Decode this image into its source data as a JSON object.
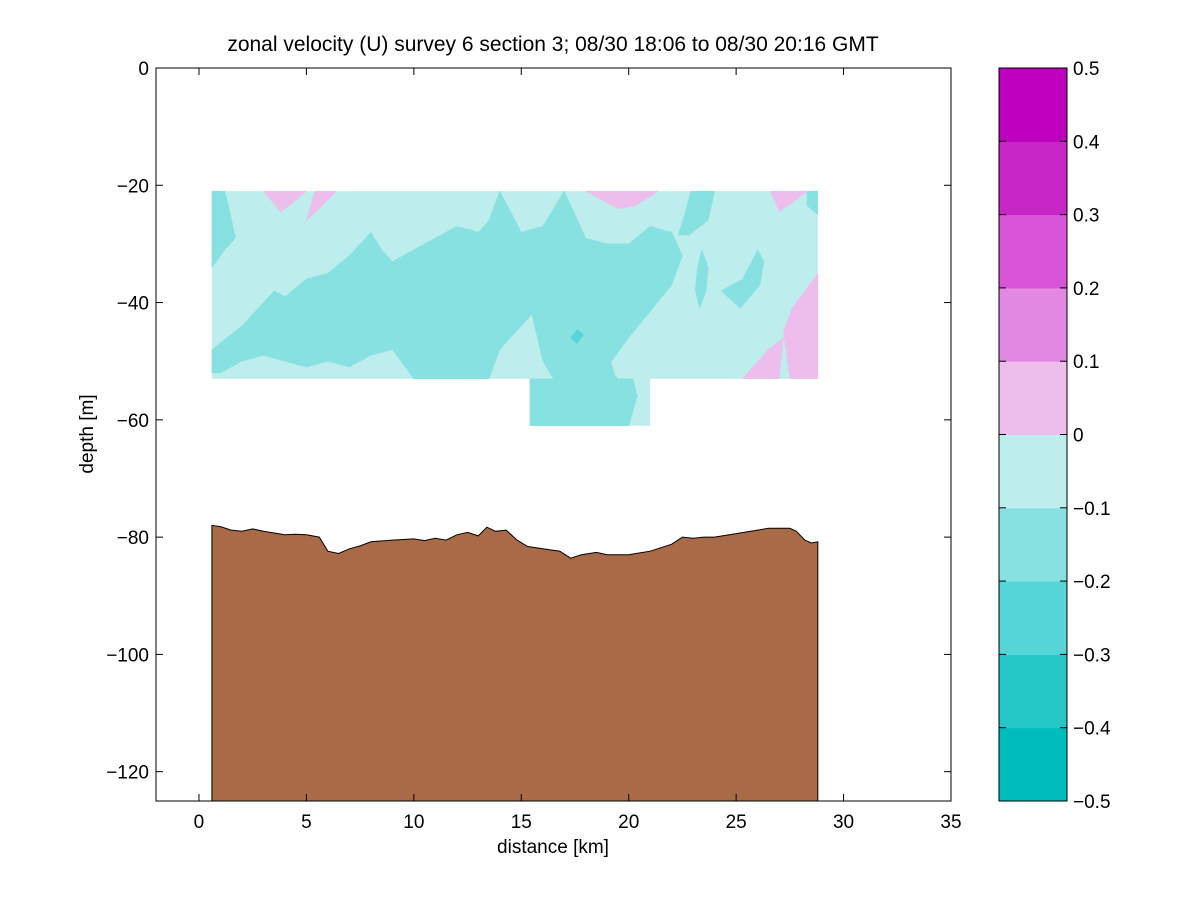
{
  "chart_data": {
    "type": "contour",
    "title": "zonal velocity (U) survey 6 section 3; 08/30 18:06 to 08/30 20:16 GMT",
    "xlabel": "distance [km]",
    "ylabel": "depth [m]",
    "xlim": [
      -2,
      35
    ],
    "ylim": [
      -125,
      0
    ],
    "x_ticks": [
      0,
      5,
      10,
      15,
      20,
      25,
      30,
      35
    ],
    "y_ticks": [
      0,
      -20,
      -40,
      -60,
      -80,
      -100,
      -120
    ],
    "grid": false,
    "colorbar": {
      "levels": [
        -0.5,
        -0.4,
        -0.3,
        -0.2,
        -0.1,
        0,
        0.1,
        0.2,
        0.3,
        0.4,
        0.5
      ],
      "tick_labels": [
        "−0.5",
        "−0.4",
        "−0.3",
        "−0.2",
        "−0.1",
        "0",
        "0.1",
        "0.2",
        "0.3",
        "0.4",
        "0.5"
      ],
      "colors": [
        "#00bdbd",
        "#26c7c7",
        "#55d5d5",
        "#88e1e1",
        "#bdeded",
        "#edbdec",
        "#e388e2",
        "#d955d7",
        "#c726c5",
        "#bd00bd"
      ],
      "placement": "right"
    },
    "velocity_field": {
      "background_level_range": [
        -0.1,
        0
      ],
      "data_extent": {
        "main": {
          "x": [
            0.6,
            28.8
          ],
          "depth": [
            -21,
            -53
          ]
        },
        "extension": {
          "x": [
            15.4,
            21.0
          ],
          "depth": [
            -53,
            -61
          ]
        }
      },
      "regions": [
        {
          "level_range": [
            -0.2,
            -0.1
          ],
          "polygon": [
            [
              0.6,
              -48
            ],
            [
              2,
              -44
            ],
            [
              3,
              -40
            ],
            [
              3.5,
              -38
            ],
            [
              4,
              -39
            ],
            [
              5,
              -36
            ],
            [
              6,
              -35
            ],
            [
              7,
              -32
            ],
            [
              8,
              -28
            ],
            [
              8.5,
              -31
            ],
            [
              9,
              -33
            ],
            [
              10,
              -31
            ],
            [
              11,
              -29
            ],
            [
              12,
              -27
            ],
            [
              13,
              -28
            ],
            [
              13.5,
              -26
            ],
            [
              14,
              -21
            ],
            [
              15,
              -28
            ],
            [
              16,
              -27
            ],
            [
              17,
              -21
            ],
            [
              18,
              -29
            ],
            [
              19,
              -30
            ],
            [
              20,
              -30
            ],
            [
              21,
              -27
            ],
            [
              22,
              -28
            ],
            [
              22.5,
              -32
            ],
            [
              22,
              -37
            ],
            [
              20,
              -46
            ],
            [
              19,
              -51
            ],
            [
              19.5,
              -53
            ],
            [
              16.5,
              -53
            ],
            [
              16,
              -50
            ],
            [
              15.5,
              -42
            ],
            [
              14,
              -48
            ],
            [
              13.5,
              -53
            ],
            [
              10,
              -53
            ],
            [
              9,
              -48
            ],
            [
              8,
              -49
            ],
            [
              7,
              -51
            ],
            [
              6,
              -50
            ],
            [
              5,
              -51
            ],
            [
              4,
              -50
            ],
            [
              3,
              -49
            ],
            [
              2,
              -50
            ],
            [
              1,
              -52
            ],
            [
              0.6,
              -52
            ]
          ]
        },
        {
          "level_range": [
            -0.2,
            -0.1
          ],
          "polygon": [
            [
              15.4,
              -53
            ],
            [
              16.6,
              -53
            ],
            [
              17.2,
              -48
            ],
            [
              17.8,
              -44
            ],
            [
              18.2,
              -42
            ],
            [
              18.6,
              -44
            ],
            [
              19,
              -48
            ],
            [
              19.4,
              -53
            ],
            [
              20.2,
              -53
            ],
            [
              20.4,
              -56
            ],
            [
              20.0,
              -61
            ],
            [
              15.4,
              -61
            ]
          ]
        },
        {
          "level_range": [
            -0.2,
            -0.1
          ],
          "polygon": [
            [
              0.6,
              -21
            ],
            [
              1.2,
              -21
            ],
            [
              1.4,
              -24
            ],
            [
              1.7,
              -29
            ],
            [
              1.2,
              -31
            ],
            [
              0.6,
              -34
            ]
          ]
        },
        {
          "level_range": [
            -0.2,
            -0.1
          ],
          "polygon": [
            [
              22.9,
              -21
            ],
            [
              24,
              -21
            ],
            [
              23.7,
              -26
            ],
            [
              22.8,
              -28.5
            ],
            [
              22.3,
              -28.5
            ],
            [
              22.6,
              -25
            ]
          ]
        },
        {
          "level_range": [
            -0.2,
            -0.1
          ],
          "polygon": [
            [
              23.2,
              -34
            ],
            [
              23.4,
              -31
            ],
            [
              23.7,
              -34
            ],
            [
              23.6,
              -38
            ],
            [
              23.3,
              -41
            ],
            [
              23.1,
              -38
            ]
          ]
        },
        {
          "level_range": [
            -0.2,
            -0.1
          ],
          "polygon": [
            [
              24.3,
              -38
            ],
            [
              25.3,
              -36
            ],
            [
              26,
              -31
            ],
            [
              26.3,
              -33
            ],
            [
              26.1,
              -37
            ],
            [
              25.2,
              -41
            ]
          ]
        },
        {
          "level_range": [
            -0.2,
            -0.1
          ],
          "polygon": [
            [
              28.3,
              -21
            ],
            [
              28.8,
              -21
            ],
            [
              28.8,
              -25
            ],
            [
              28.3,
              -23.5
            ]
          ]
        },
        {
          "level_range": [
            -0.3,
            -0.2
          ],
          "polygon": [
            [
              17.3,
              -46
            ],
            [
              17.6,
              -44.6
            ],
            [
              17.9,
              -45.5
            ],
            [
              17.6,
              -47
            ]
          ]
        },
        {
          "level_range": [
            0,
            0.1
          ],
          "polygon": [
            [
              3,
              -21
            ],
            [
              5,
              -21
            ],
            [
              4.2,
              -23.5
            ],
            [
              3.8,
              -24.5
            ]
          ]
        },
        {
          "level_range": [
            0,
            0.1
          ],
          "polygon": [
            [
              5.4,
              -21
            ],
            [
              6.4,
              -21
            ],
            [
              5.6,
              -24
            ],
            [
              5,
              -26
            ]
          ]
        },
        {
          "level_range": [
            0,
            0.1
          ],
          "polygon": [
            [
              18,
              -21
            ],
            [
              21.4,
              -21
            ],
            [
              20.3,
              -23.5
            ],
            [
              19.5,
              -24
            ]
          ]
        },
        {
          "level_range": [
            0,
            0.1
          ],
          "polygon": [
            [
              26.6,
              -21
            ],
            [
              28.3,
              -21
            ],
            [
              27.8,
              -22.5
            ],
            [
              27,
              -24.5
            ]
          ]
        },
        {
          "level_range": [
            0,
            0.1
          ],
          "polygon": [
            [
              28.8,
              -35
            ],
            [
              28.8,
              -53
            ],
            [
              27.5,
              -53
            ],
            [
              27.2,
              -45
            ],
            [
              27.6,
              -41
            ]
          ]
        },
        {
          "level_range": [
            0,
            0.1
          ],
          "polygon": [
            [
              25.3,
              -53
            ],
            [
              26.5,
              -48
            ],
            [
              27.2,
              -46
            ],
            [
              27,
              -53
            ]
          ]
        }
      ]
    },
    "bathymetry": {
      "fill_color": "#a96b47",
      "x": [
        0.6,
        1.0,
        1.5,
        2.0,
        2.5,
        3.0,
        3.5,
        4.0,
        4.5,
        5.0,
        5.6,
        6.0,
        6.5,
        7.0,
        7.5,
        8.0,
        9.0,
        10.0,
        10.5,
        11.0,
        11.5,
        12.0,
        12.5,
        13.0,
        13.4,
        13.8,
        14.3,
        14.8,
        15.3,
        16.0,
        16.8,
        17.3,
        17.8,
        18.5,
        19.0,
        20.0,
        21.0,
        22.0,
        22.5,
        23.0,
        23.5,
        24.0,
        25.0,
        26.0,
        26.5,
        27.0,
        27.5,
        27.8,
        28.2,
        28.5,
        28.8
      ],
      "depth": [
        -78,
        -78.2,
        -78.8,
        -79,
        -78.6,
        -79,
        -79.3,
        -79.6,
        -79.5,
        -79.6,
        -80,
        -82.4,
        -82.8,
        -82,
        -81.5,
        -80.8,
        -80.5,
        -80.3,
        -80.6,
        -80.2,
        -80.5,
        -79.6,
        -79.2,
        -79.8,
        -78.3,
        -79,
        -78.8,
        -80.5,
        -81.6,
        -82,
        -82.4,
        -83.6,
        -83,
        -82.6,
        -83,
        -83,
        -82.4,
        -81.2,
        -80,
        -80.2,
        -80,
        -80,
        -79.4,
        -78.8,
        -78.5,
        -78.5,
        -78.5,
        -79,
        -80.5,
        -81,
        -80.8
      ]
    }
  }
}
